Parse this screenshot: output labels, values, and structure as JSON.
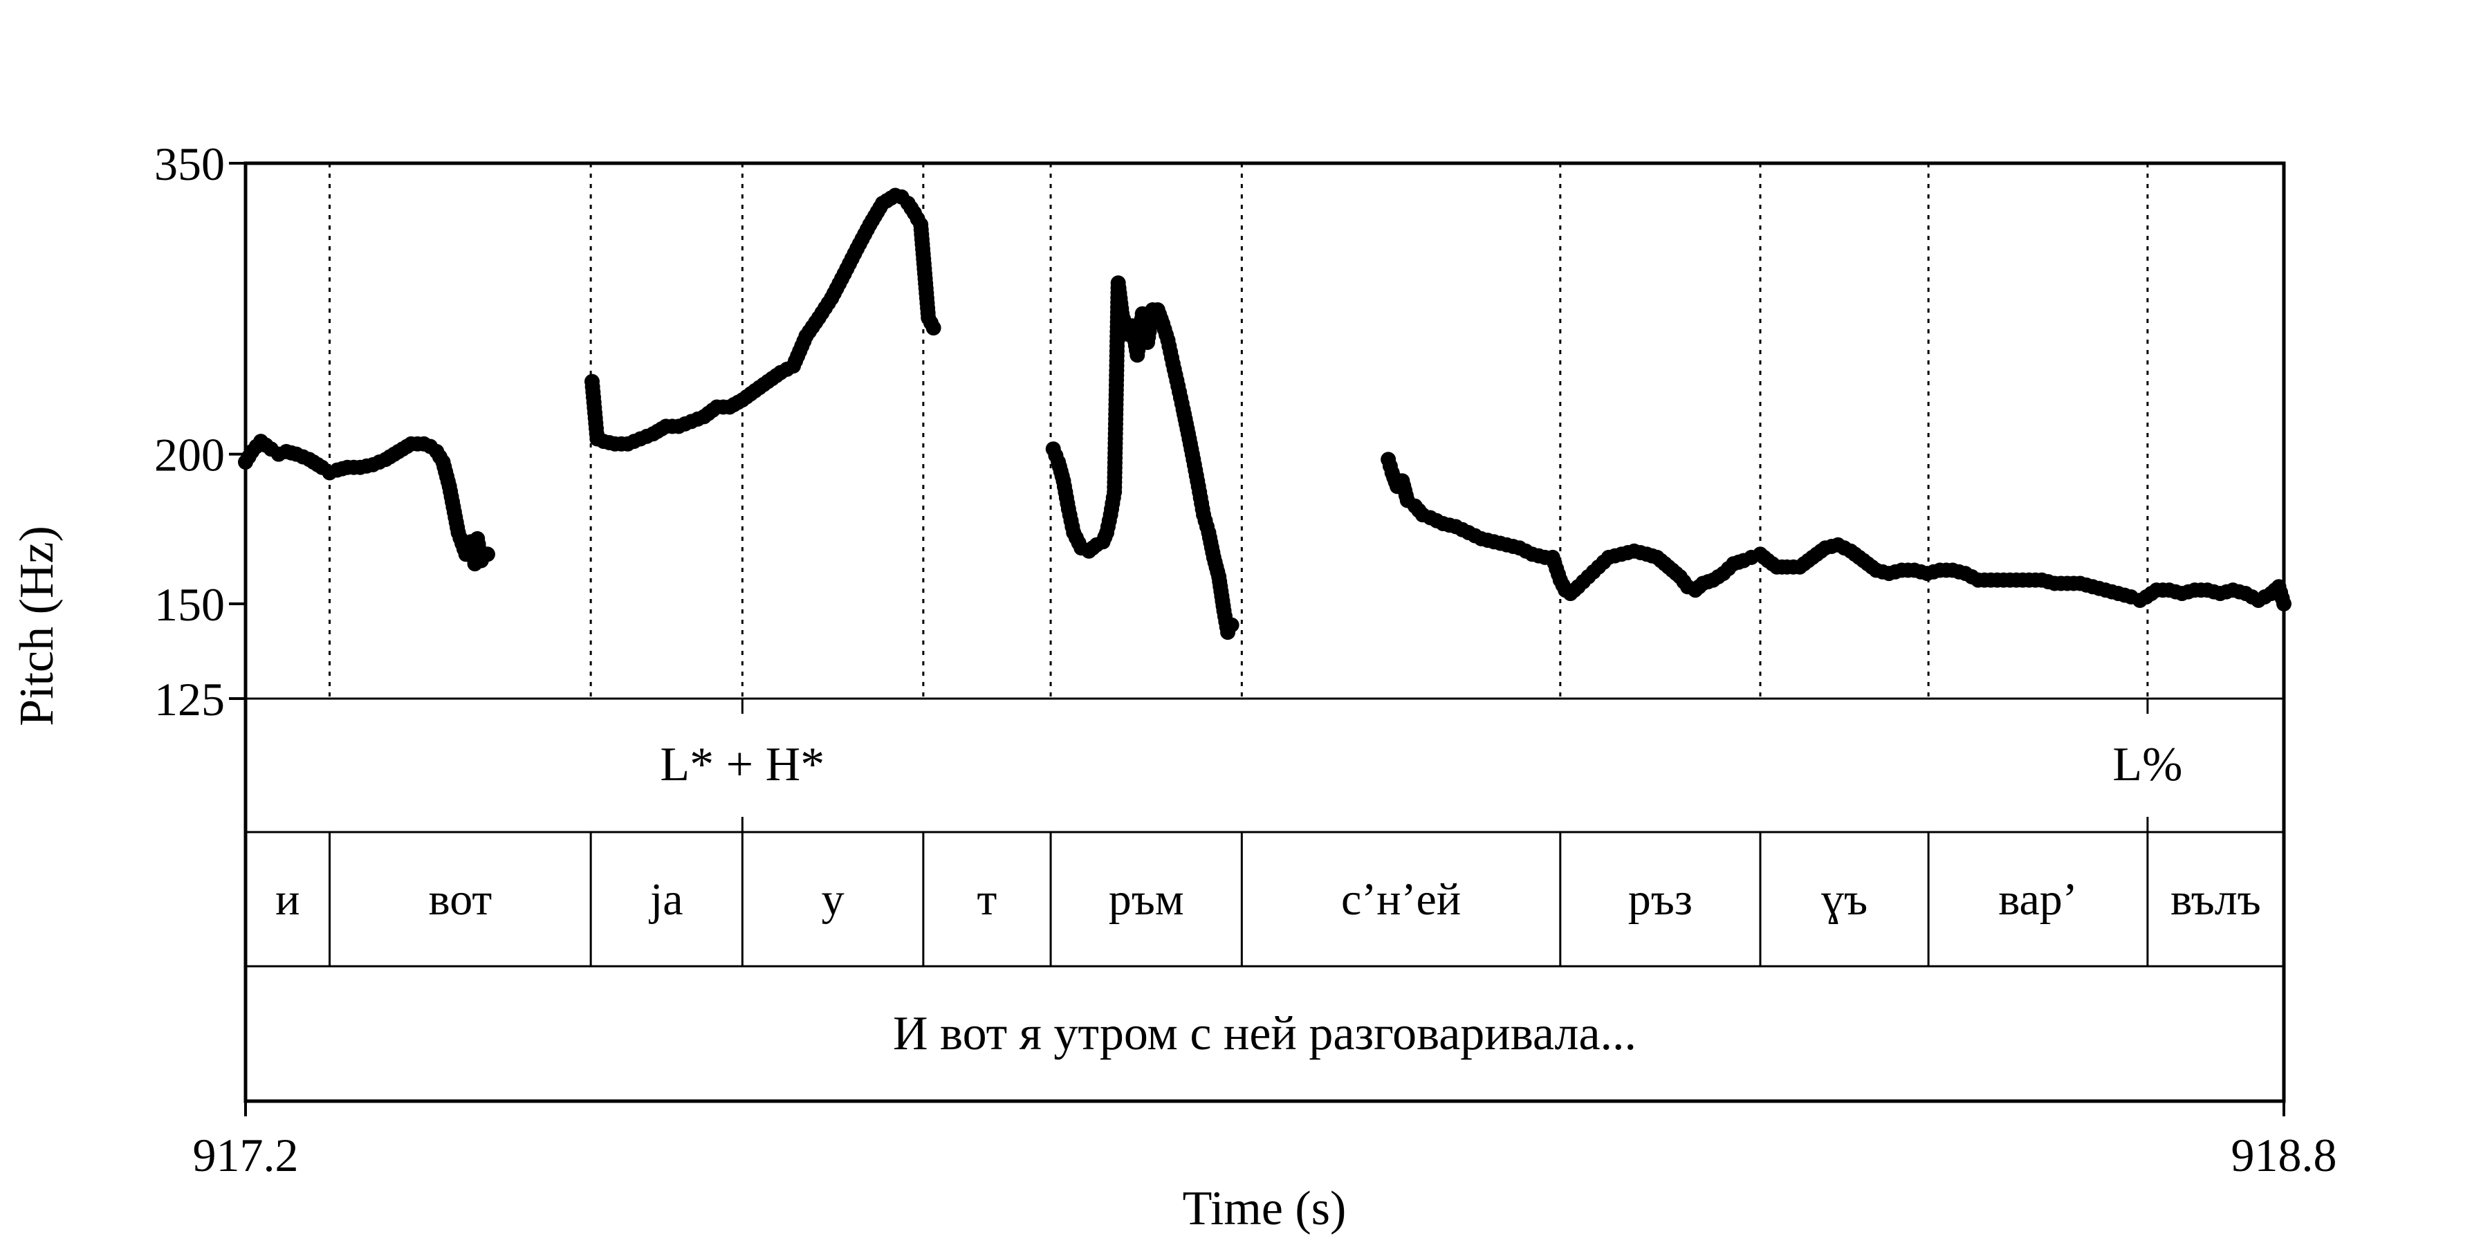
{
  "chart_data": {
    "type": "scatter",
    "ylabel": "Pitch (Hz)",
    "xlabel": "Time (s)",
    "y_scale": "log",
    "xlim": [
      917.2,
      918.8
    ],
    "ylim": [
      125,
      350
    ],
    "yticks": [
      "125",
      "150",
      "200",
      "350"
    ],
    "ytick_values": [
      125,
      150,
      200,
      350
    ],
    "xticks": [
      "917.2",
      "918.8"
    ],
    "xtick_values": [
      917.2,
      918.8
    ],
    "grid": false,
    "boundaries": [
      917.266,
      917.471,
      917.59,
      917.732,
      917.832,
      917.982,
      918.232,
      918.389,
      918.521,
      918.693
    ],
    "tone_tier": {
      "labels": [
        "L* + H*",
        "L%"
      ],
      "positions": [
        917.59,
        918.693
      ]
    },
    "word_tier": {
      "segments": [
        {
          "label": "и",
          "start": 917.2,
          "end": 917.266
        },
        {
          "label": "вот",
          "start": 917.266,
          "end": 917.471
        },
        {
          "label": "ja",
          "start": 917.471,
          "end": 917.59
        },
        {
          "label": "у",
          "start": 917.59,
          "end": 917.732
        },
        {
          "label": "т",
          "start": 917.732,
          "end": 917.832
        },
        {
          "label": "ръм",
          "start": 917.832,
          "end": 917.982
        },
        {
          "label": "с’н’ей",
          "start": 917.982,
          "end": 918.232
        },
        {
          "label": "ръз",
          "start": 918.232,
          "end": 918.389
        },
        {
          "label": "ɣъ",
          "start": 918.389,
          "end": 918.521
        },
        {
          "label": "вар’",
          "start": 918.521,
          "end": 918.693
        },
        {
          "label": "вълъ",
          "start": 918.693,
          "end": 918.8
        }
      ]
    },
    "sentence_tier": {
      "label": "И вот я утром с ней разговаривала...",
      "start": 917.2,
      "end": 918.8
    },
    "series": [
      {
        "x": [
          917.2,
          917.205,
          917.212,
          917.22,
          917.226,
          917.232,
          917.24,
          917.25,
          917.26,
          917.266,
          917.272,
          917.28,
          917.29,
          917.3,
          917.31,
          917.32,
          917.33,
          917.34,
          917.345,
          917.35,
          917.355,
          917.36,
          917.367,
          917.373,
          917.377,
          917.38,
          917.382,
          917.385,
          917.39
        ],
        "y": [
          197,
          201,
          205,
          202,
          200,
          201,
          200,
          198,
          195,
          193,
          194,
          195,
          195,
          196,
          198,
          201,
          204,
          204,
          203,
          201,
          197,
          188,
          172,
          165,
          169,
          162,
          170,
          163,
          165
        ]
      },
      {
        "x": [
          917.472,
          917.476,
          917.481,
          917.49,
          917.5,
          917.51,
          917.52,
          917.53,
          917.54,
          917.55,
          917.56,
          917.57,
          917.58,
          917.59,
          917.6,
          917.61,
          917.62,
          917.63,
          917.64,
          917.65,
          917.655,
          917.66,
          917.67,
          917.68,
          917.69,
          917.7,
          917.71,
          917.715,
          917.72,
          917.725,
          917.73,
          917.736,
          917.74
        ],
        "y": [
          230,
          206,
          205,
          204,
          204,
          206,
          208,
          211,
          211,
          213,
          215,
          219,
          219,
          222,
          226,
          230,
          234,
          237,
          251,
          260,
          265,
          270,
          283,
          297,
          311,
          324,
          329,
          328,
          324,
          318,
          311,
          260,
          255
        ]
      },
      {
        "x": [
          917.834,
          917.838,
          917.842,
          917.846,
          917.85,
          917.856,
          917.862,
          917.868,
          917.873,
          917.876,
          917.879,
          917.882,
          917.885,
          917.888,
          917.892,
          917.896,
          917.9,
          917.904,
          917.908,
          917.912,
          917.916,
          917.92,
          917.924,
          917.928,
          917.932,
          917.936,
          917.94,
          917.944,
          917.948,
          917.952,
          917.956,
          917.96,
          917.964,
          917.968,
          917.971,
          917.974
        ],
        "y": [
          202,
          197,
          190,
          180,
          172,
          167,
          166,
          168,
          169,
          172,
          178,
          186,
          278,
          262,
          252,
          256,
          242,
          262,
          248,
          264,
          264,
          257,
          249,
          238,
          228,
          218,
          208,
          198,
          188,
          178,
          172,
          164,
          158,
          148,
          142,
          144
        ]
      },
      {
        "x": [
          918.097,
          918.1,
          918.104,
          918.108,
          918.112,
          918.118,
          918.124,
          918.13,
          918.14,
          918.15,
          918.16,
          918.17,
          918.18,
          918.19,
          918.2,
          918.21,
          918.22,
          918.226,
          918.232,
          918.236,
          918.24,
          918.246,
          918.254,
          918.262,
          918.27,
          918.28,
          918.29,
          918.3,
          918.308,
          918.314,
          918.32,
          918.326,
          918.332,
          918.338,
          918.344,
          918.352,
          918.36,
          918.368,
          918.376,
          918.382,
          918.389,
          918.395,
          918.402,
          918.41,
          918.42,
          918.43,
          918.44,
          918.45,
          918.46,
          918.47,
          918.48,
          918.49,
          918.5,
          918.51,
          918.52,
          918.53,
          918.54,
          918.55,
          918.56,
          918.57,
          918.58,
          918.59,
          918.6,
          918.61,
          918.62,
          918.63,
          918.64,
          918.65,
          918.66,
          918.67,
          918.68,
          918.687,
          918.692,
          918.7,
          918.71,
          918.72,
          918.73,
          918.74,
          918.75,
          918.76,
          918.77,
          918.78,
          918.79,
          918.796,
          918.8
        ],
        "y": [
          198,
          193,
          188,
          190,
          183,
          181,
          178,
          177,
          175,
          174,
          172,
          170,
          169,
          168,
          167,
          165,
          164,
          164,
          157,
          154,
          153,
          155,
          158,
          161,
          164,
          165,
          166,
          165,
          164,
          162,
          160,
          158,
          155,
          154,
          156,
          157,
          159,
          162,
          163,
          164,
          165,
          163,
          161,
          161,
          161,
          164,
          167,
          168,
          166,
          163,
          160,
          159,
          160,
          160,
          159,
          160,
          160,
          159,
          157,
          157,
          157,
          157,
          157,
          157,
          156,
          156,
          156,
          155,
          154,
          153,
          152,
          151,
          152,
          154,
          154,
          153,
          154,
          154,
          153,
          154,
          153,
          151,
          153,
          155,
          150
        ]
      }
    ]
  }
}
